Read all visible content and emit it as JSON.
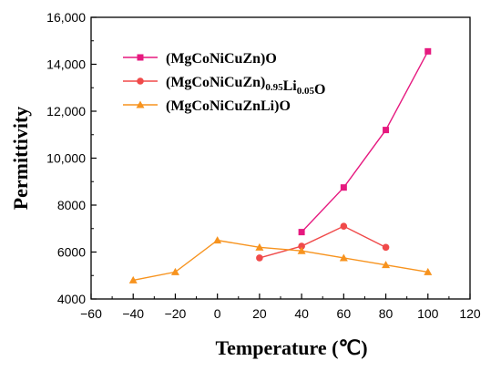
{
  "chart_data": {
    "type": "line",
    "title": "",
    "xlabel": "Temperature (℃)",
    "ylabel": "Permittivity",
    "xlim": [
      -60,
      120
    ],
    "ylim": [
      4000,
      16000
    ],
    "x_ticks": [
      "−60",
      "−40",
      "−20",
      "0",
      "20",
      "40",
      "60",
      "80",
      "100",
      "120"
    ],
    "y_ticks": [
      "4000",
      "6000",
      "8000",
      "10,000",
      "12,000",
      "14,000",
      "16,000"
    ],
    "grid": false,
    "legend_position": "top-left",
    "series": [
      {
        "name": "(MgCoNiCuZn)O",
        "legend": {
          "base": "(MgCoNiCuZn)",
          "sub1": "",
          "mid": "",
          "sub2": "",
          "tail": "O"
        },
        "marker": "square",
        "color": "#e6197f",
        "x": [
          40,
          60,
          80,
          100
        ],
        "y": [
          6850,
          8750,
          11200,
          14550
        ]
      },
      {
        "name": "(MgCoNiCuZn)0.95Li0.05O",
        "legend": {
          "base": "(MgCoNiCuZn)",
          "sub1": "0.95",
          "mid": "Li",
          "sub2": "0.05",
          "tail": "O"
        },
        "marker": "circle",
        "color": "#f04a4a",
        "x": [
          20,
          40,
          60,
          80
        ],
        "y": [
          5750,
          6250,
          7100,
          6200
        ]
      },
      {
        "name": "(MgCoNiCuZnLi)O",
        "legend": {
          "base": "(MgCoNiCuZnLi)",
          "sub1": "",
          "mid": "",
          "sub2": "",
          "tail": "O"
        },
        "marker": "triangle",
        "color": "#f7931e",
        "x": [
          -40,
          -20,
          0,
          20,
          40,
          60,
          80,
          100
        ],
        "y": [
          4800,
          5150,
          6500,
          6200,
          6050,
          5750,
          5450,
          5150
        ]
      }
    ]
  }
}
